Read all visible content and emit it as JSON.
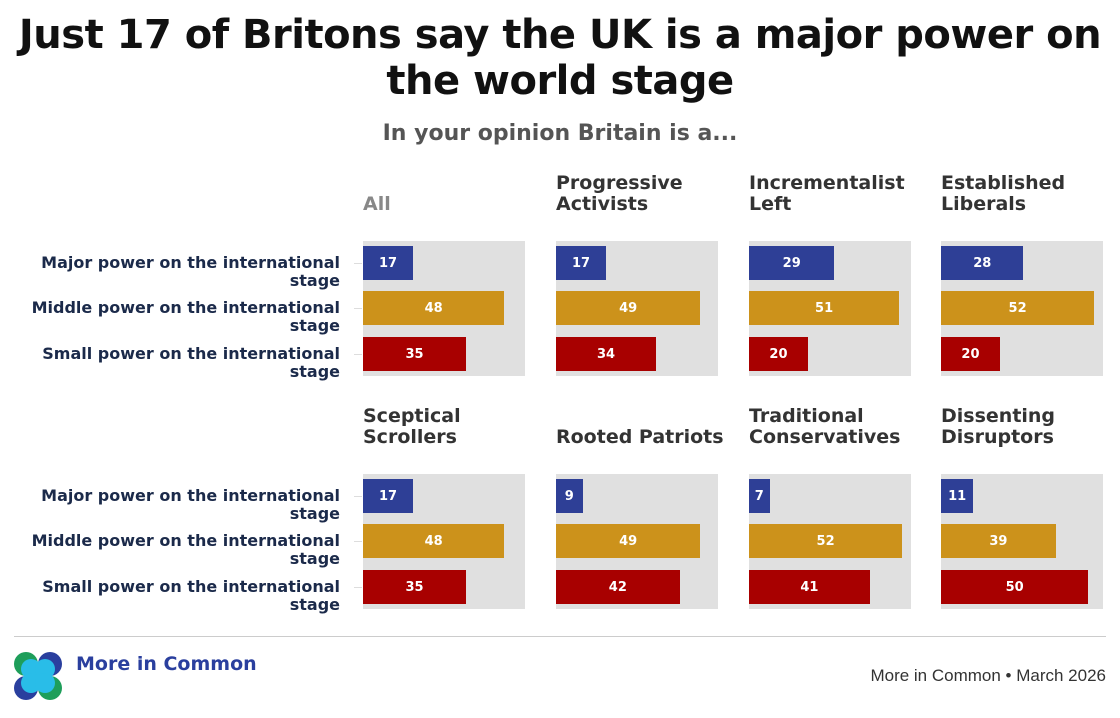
{
  "chart_data": {
    "type": "bar",
    "orientation": "horizontal",
    "title": "Just 17 of Britons say the UK is a major power on the world stage",
    "subtitle": "In your opinion Britain is a...",
    "categories": [
      "Major power on the international stage",
      "Middle power on the international stage",
      "Small power on the international stage"
    ],
    "colors": [
      "#2e3f96",
      "#cc921b",
      "#a80000"
    ],
    "xlim": [
      0,
      55
    ],
    "grid": false,
    "panels": [
      {
        "title": "All",
        "values": [
          17,
          48,
          35
        ]
      },
      {
        "title": "Progressive Activists",
        "values": [
          17,
          49,
          34
        ]
      },
      {
        "title": "Incrementalist Left",
        "values": [
          29,
          51,
          20
        ]
      },
      {
        "title": "Established Liberals",
        "values": [
          28,
          52,
          20
        ]
      },
      {
        "title": "Sceptical Scrollers",
        "values": [
          17,
          48,
          35
        ]
      },
      {
        "title": "Rooted Patriots",
        "values": [
          9,
          49,
          42
        ]
      },
      {
        "title": "Traditional Conservatives",
        "values": [
          7,
          52,
          41
        ]
      },
      {
        "title": "Dissenting Disruptors",
        "values": [
          11,
          39,
          50
        ]
      }
    ]
  },
  "footer": {
    "source": "More in Common • March 2026",
    "logo_text": "More in Common"
  }
}
